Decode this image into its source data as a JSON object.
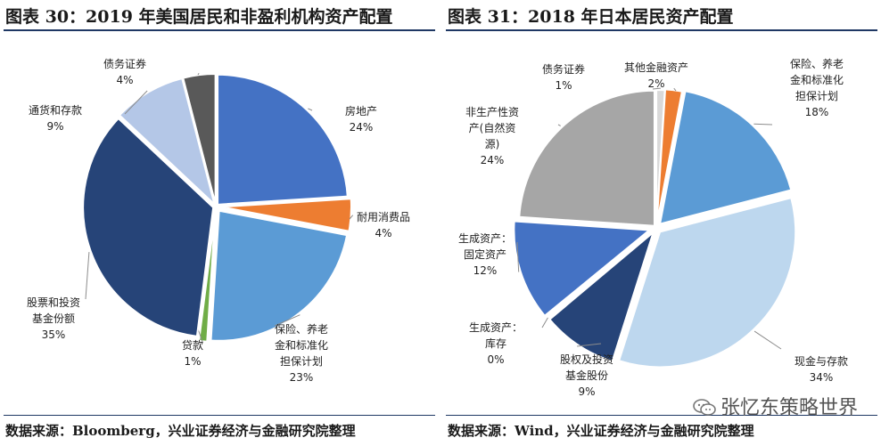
{
  "chart_data": [
    {
      "type": "pie",
      "title": "图表 30：2019 年美国居民和非盈利机构资产配置",
      "source": "数据来源：Bloomberg，兴业证券经济与金融研究院整理",
      "slices": [
        {
          "label": [
            "房地产"
          ],
          "value_label": "24%",
          "value": 24,
          "color": "#4472c4"
        },
        {
          "label": [
            "耐用消费品"
          ],
          "value_label": "4%",
          "value": 4,
          "color": "#ed7d31"
        },
        {
          "label": [
            "保险、养老",
            "金和标准化",
            "担保计划"
          ],
          "value_label": "23%",
          "value": 23,
          "color": "#5b9bd5"
        },
        {
          "label": [
            "贷款"
          ],
          "value_label": "1%",
          "value": 1,
          "color": "#70ad47"
        },
        {
          "label": [
            "股票和投资",
            "基金份额"
          ],
          "value_label": "35%",
          "value": 35,
          "color": "#264478"
        },
        {
          "label": [
            "通货和存款"
          ],
          "value_label": "9%",
          "value": 9,
          "color": "#b4c7e7"
        },
        {
          "label": [
            "债务证券"
          ],
          "value_label": "4%",
          "value": 4,
          "color": "#595959"
        }
      ]
    },
    {
      "type": "pie",
      "title": "图表 31：2018 年日本居民资产配置",
      "source": "数据来源：Wind，兴业证券经济与金融研究院整理",
      "slices": [
        {
          "label": [
            "债务证券"
          ],
          "value_label": "1%",
          "value": 1,
          "color": "#d9d9d9"
        },
        {
          "label": [
            "其他金融资产"
          ],
          "value_label": "2%",
          "value": 2,
          "color": "#ed7d31"
        },
        {
          "label": [
            "保险、养老",
            "金和标准化",
            "担保计划"
          ],
          "value_label": "18%",
          "value": 18,
          "color": "#5b9bd5"
        },
        {
          "label": [
            "现金与存款"
          ],
          "value_label": "34%",
          "value": 34,
          "color": "#bdd7ee"
        },
        {
          "label": [
            "股权及投资",
            "基金股份"
          ],
          "value_label": "9%",
          "value": 9,
          "color": "#264478"
        },
        {
          "label": [
            "生成资产：",
            "库存"
          ],
          "value_label": "0%",
          "value": 0.2,
          "color": "#a5a5a5"
        },
        {
          "label": [
            "生成资产：",
            "固定资产"
          ],
          "value_label": "12%",
          "value": 12,
          "color": "#4472c4"
        },
        {
          "label": [
            "非生产性资",
            "产(自然资",
            "源)"
          ],
          "value_label": "24%",
          "value": 24,
          "color": "#a6a6a6"
        }
      ]
    }
  ],
  "watermark": "张忆东策略世界"
}
